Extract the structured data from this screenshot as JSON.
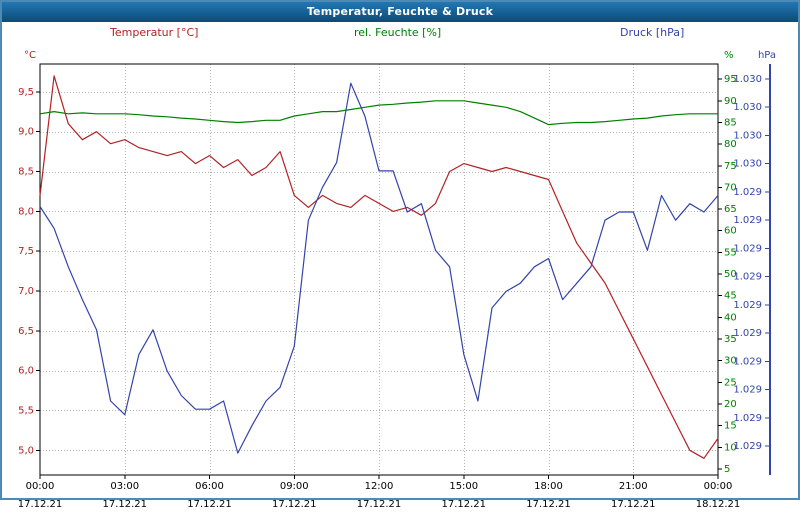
{
  "window": {
    "title": "Temperatur, Feuchte & Druck"
  },
  "legend": {
    "temp": "Temperatur [°C]",
    "hum": "rel. Feuchte [%]",
    "pres": "Druck [hPa]"
  },
  "colors": {
    "titlebar_top": "#2277b3",
    "titlebar_bottom": "#0c4a78",
    "window_border": "#4d8ab5",
    "temp": "#b22222",
    "hum": "#008000",
    "pres": "#3344aa",
    "grid": "#b4b4b4",
    "axis": "#000000"
  },
  "chart_data": {
    "type": "line",
    "title": "Temperatur, Feuchte & Druck",
    "grid": true,
    "x_hours": [
      0,
      0.5,
      1,
      1.5,
      2,
      2.5,
      3,
      3.5,
      4,
      4.5,
      5,
      5.5,
      6,
      6.5,
      7,
      7.5,
      8,
      8.5,
      9,
      9.5,
      10,
      10.5,
      11,
      11.5,
      12,
      12.5,
      13,
      13.5,
      14,
      14.5,
      15,
      15.5,
      16,
      16.5,
      17,
      17.5,
      18,
      18.5,
      19,
      19.5,
      20,
      20.5,
      21,
      21.5,
      22,
      22.5,
      23,
      23.5,
      24
    ],
    "series": [
      {
        "name": "Temperatur",
        "unit": "°C",
        "axis": "temp",
        "color": "#b22222",
        "values": [
          8.2,
          9.7,
          9.1,
          8.9,
          9.0,
          8.85,
          8.9,
          8.8,
          8.75,
          8.7,
          8.75,
          8.6,
          8.7,
          8.55,
          8.65,
          8.45,
          8.55,
          8.75,
          8.2,
          8.05,
          8.2,
          8.1,
          8.05,
          8.2,
          8.1,
          8.0,
          8.05,
          7.95,
          8.1,
          8.5,
          8.6,
          8.55,
          8.5,
          8.55,
          8.5,
          8.45,
          8.4,
          8.0,
          7.6,
          7.35,
          7.1,
          6.75,
          6.4,
          6.05,
          5.7,
          5.35,
          5.0,
          4.9,
          5.15
        ]
      },
      {
        "name": "rel. Feuchte",
        "unit": "%",
        "axis": "hum",
        "color": "#008000",
        "values": [
          87,
          87.5,
          87,
          87.2,
          87,
          87,
          87,
          86.8,
          86.5,
          86.3,
          86,
          85.8,
          85.5,
          85.2,
          85,
          85.2,
          85.5,
          85.5,
          86.5,
          87,
          87.5,
          87.5,
          88,
          88.5,
          89,
          89.2,
          89.5,
          89.7,
          90,
          90,
          90,
          89.5,
          89,
          88.5,
          87.5,
          86,
          84.5,
          84.8,
          85,
          85,
          85.2,
          85.5,
          85.8,
          86,
          86.5,
          86.8,
          87,
          87,
          87
        ]
      },
      {
        "name": "Druck",
        "unit": "hPa",
        "axis": "pres",
        "color": "#3344aa",
        "values": [
          1029.88,
          1029.8,
          1029.66,
          1029.54,
          1029.43,
          1029.17,
          1029.12,
          1029.34,
          1029.43,
          1029.28,
          1029.19,
          1029.14,
          1029.14,
          1029.17,
          1028.98,
          1029.08,
          1029.17,
          1029.22,
          1029.37,
          1029.83,
          1029.95,
          1030.04,
          1030.33,
          1030.21,
          1030.01,
          1030.01,
          1029.86,
          1029.89,
          1029.72,
          1029.66,
          1029.34,
          1029.17,
          1029.51,
          1029.57,
          1029.6,
          1029.66,
          1029.69,
          1029.54,
          1029.6,
          1029.66,
          1029.83,
          1029.86,
          1029.86,
          1029.72,
          1029.92,
          1029.83,
          1029.89,
          1029.86,
          1029.92
        ]
      }
    ],
    "axes": {
      "temp": {
        "unit": "°C",
        "min": 4.69,
        "max": 9.85,
        "ticks": [
          9.5,
          9.0,
          8.5,
          8.0,
          7.5,
          7.0,
          6.5,
          6.0,
          5.5,
          5.0
        ],
        "tick_labels": [
          "9,5",
          "9,0",
          "8,5",
          "8,0",
          "7,5",
          "7,0",
          "6,5",
          "6,0",
          "5,5",
          "5,0"
        ]
      },
      "hum": {
        "unit": "%",
        "min": 3.6,
        "max": 98.5,
        "ticks": [
          95,
          90,
          85,
          80,
          75,
          70,
          65,
          60,
          55,
          50,
          45,
          40,
          35,
          30,
          25,
          20,
          15,
          10,
          5
        ]
      },
      "pres": {
        "unit": "hPa",
        "min": 1028.9,
        "max": 1030.4,
        "tick_labels": [
          "1.030",
          "1.030",
          "1.030",
          "1.030",
          "1.029",
          "1.029",
          "1.029",
          "1.029",
          "1.029",
          "1.029",
          "1.029",
          "1.029",
          "1.029",
          "1.029"
        ]
      }
    },
    "x_ticks": {
      "hours": [
        0,
        3,
        6,
        9,
        12,
        15,
        18,
        21,
        24
      ],
      "times": [
        "00:00",
        "03:00",
        "06:00",
        "09:00",
        "12:00",
        "15:00",
        "18:00",
        "21:00",
        "00:00"
      ],
      "dates": [
        "17.12.21",
        "17.12.21",
        "17.12.21",
        "17.12.21",
        "17.12.21",
        "17.12.21",
        "17.12.21",
        "17.12.21",
        "18.12.21"
      ]
    }
  }
}
